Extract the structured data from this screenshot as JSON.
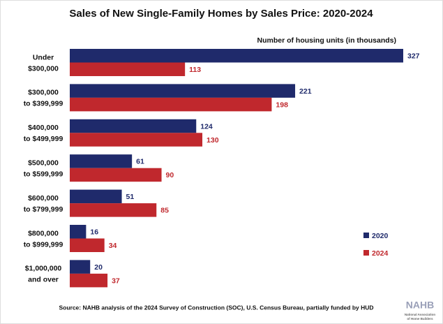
{
  "chart_data": {
    "type": "bar",
    "orientation": "horizontal",
    "title": "Sales of New Single-Family Homes by Sales Price: 2020-2024",
    "value_axis_label": "Number of housing units (in thousands)",
    "categories": [
      [
        "Under",
        "$300,000"
      ],
      [
        "$300,000",
        "to $399,999"
      ],
      [
        "$400,000",
        "to $499,999"
      ],
      [
        "$500,000",
        "to $599,999"
      ],
      [
        "$600,000",
        "to $799,999"
      ],
      [
        "$800,000",
        "to $999,999"
      ],
      [
        "$1,000,000",
        "and over"
      ]
    ],
    "series": [
      {
        "name": "2020",
        "color": "#1f2a6b",
        "values": [
          327,
          221,
          124,
          61,
          51,
          16,
          20
        ]
      },
      {
        "name": "2024",
        "color": "#c0282d",
        "values": [
          113,
          198,
          130,
          90,
          85,
          34,
          37
        ]
      }
    ],
    "legend": "lower right",
    "source": "Source: NAHB analysis of the 2024 Survey of Construction (SOC), U.S. Census Bureau, partially funded by HUD",
    "logo": {
      "name": "NAHB",
      "tagline": [
        "National Association",
        "of Home Builders"
      ]
    }
  }
}
